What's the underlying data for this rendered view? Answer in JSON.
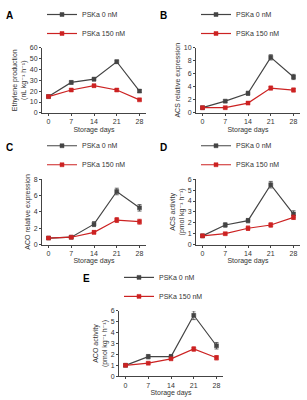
{
  "chart_data": [
    {
      "type": "line",
      "title": "A",
      "xlabel": "Storage days",
      "ylabel": "Ethylene production (nL kg⁻¹ h⁻¹)",
      "x": [
        0,
        7,
        14,
        21,
        28
      ],
      "xlim": [
        -2,
        30
      ],
      "xticks": [
        0,
        7,
        14,
        21,
        28
      ],
      "ylim": [
        0,
        60
      ],
      "yticks": [
        0,
        10,
        20,
        30,
        40,
        50,
        60
      ],
      "grid": false,
      "legend": "upper left",
      "series": [
        {
          "name": "PSKa 0 nM",
          "color": "#444444",
          "marker": "square",
          "values": [
            15,
            28,
            31,
            47,
            20
          ],
          "yerr": [
            0.5,
            1.5,
            1.5,
            1.5,
            1.2
          ]
        },
        {
          "name": "PSKa 150 nM",
          "color": "#cc2222",
          "marker": "square",
          "values": [
            15,
            21,
            25,
            21,
            12
          ],
          "yerr": [
            0.5,
            1.0,
            1.2,
            1.2,
            0.8
          ]
        }
      ]
    },
    {
      "type": "line",
      "title": "B",
      "xlabel": "Storage days",
      "ylabel": "ACS relative expression",
      "x": [
        0,
        7,
        14,
        21,
        28
      ],
      "xlim": [
        -2,
        30
      ],
      "xticks": [
        0,
        7,
        14,
        21,
        28
      ],
      "ylim": [
        0,
        10
      ],
      "yticks": [
        0,
        2,
        4,
        6,
        8,
        10
      ],
      "grid": false,
      "legend": "upper left",
      "series": [
        {
          "name": "PSKa 0 nM",
          "color": "#444444",
          "marker": "square",
          "values": [
            0.8,
            1.8,
            3.0,
            8.5,
            5.5
          ],
          "yerr": [
            0.1,
            0.2,
            0.3,
            0.4,
            0.4
          ]
        },
        {
          "name": "PSKa 150 nM",
          "color": "#cc2222",
          "marker": "square",
          "values": [
            0.8,
            0.8,
            1.5,
            3.8,
            3.5
          ],
          "yerr": [
            0.1,
            0.1,
            0.2,
            0.3,
            0.3
          ]
        }
      ]
    },
    {
      "type": "line",
      "title": "C",
      "xlabel": "Storage days",
      "ylabel": "ACO relative expression",
      "x": [
        0,
        7,
        14,
        21,
        28
      ],
      "xlim": [
        -2,
        30
      ],
      "xticks": [
        0,
        7,
        14,
        21,
        28
      ],
      "ylim": [
        0,
        8
      ],
      "yticks": [
        0,
        2,
        4,
        6,
        8
      ],
      "grid": false,
      "legend": "upper left",
      "series": [
        {
          "name": "PSKa 0 nM",
          "color": "#444444",
          "marker": "square",
          "values": [
            0.8,
            0.9,
            2.5,
            6.5,
            4.5
          ],
          "yerr": [
            0.1,
            0.1,
            0.3,
            0.4,
            0.4
          ]
        },
        {
          "name": "PSKa 150 nM",
          "color": "#cc2222",
          "marker": "square",
          "values": [
            0.8,
            0.9,
            1.5,
            3.0,
            2.8
          ],
          "yerr": [
            0.1,
            0.1,
            0.2,
            0.3,
            0.3
          ]
        }
      ]
    },
    {
      "type": "line",
      "title": "D",
      "xlabel": "Storage days",
      "ylabel": "ACS activity (pmol kg⁻¹ h⁻¹)",
      "x": [
        0,
        7,
        14,
        21,
        28
      ],
      "xlim": [
        -2,
        30
      ],
      "xticks": [
        0,
        7,
        14,
        21,
        28
      ],
      "ylim": [
        0,
        6
      ],
      "yticks": [
        0,
        1,
        2,
        3,
        4,
        5,
        6
      ],
      "grid": false,
      "legend": "upper left",
      "series": [
        {
          "name": "PSKa 0 nM",
          "color": "#444444",
          "marker": "square",
          "values": [
            0.8,
            1.8,
            2.2,
            5.5,
            2.8
          ],
          "yerr": [
            0.1,
            0.2,
            0.2,
            0.3,
            0.3
          ]
        },
        {
          "name": "PSKa 150 nM",
          "color": "#cc2222",
          "marker": "square",
          "values": [
            0.8,
            1.0,
            1.5,
            1.8,
            2.5
          ],
          "yerr": [
            0.1,
            0.1,
            0.2,
            0.2,
            0.2
          ]
        }
      ]
    },
    {
      "type": "line",
      "title": "E",
      "xlabel": "Storage days",
      "ylabel": "ACO activity (pmol kg⁻¹ h⁻¹)",
      "x": [
        0,
        7,
        14,
        21,
        28
      ],
      "xlim": [
        -2,
        30
      ],
      "xticks": [
        0,
        7,
        14,
        21,
        28
      ],
      "ylim": [
        0,
        6
      ],
      "yticks": [
        0,
        1,
        2,
        3,
        4,
        5,
        6
      ],
      "grid": false,
      "legend": "upper left",
      "series": [
        {
          "name": "PSKa 0 nM",
          "color": "#444444",
          "marker": "square",
          "values": [
            1.0,
            1.8,
            1.8,
            5.6,
            2.8
          ],
          "yerr": [
            0.1,
            0.2,
            0.2,
            0.4,
            0.3
          ]
        },
        {
          "name": "PSKa 150 nM",
          "color": "#cc2222",
          "marker": "square",
          "values": [
            1.0,
            1.2,
            1.6,
            2.5,
            1.7
          ],
          "yerr": [
            0.1,
            0.1,
            0.1,
            0.2,
            0.2
          ]
        }
      ]
    }
  ]
}
